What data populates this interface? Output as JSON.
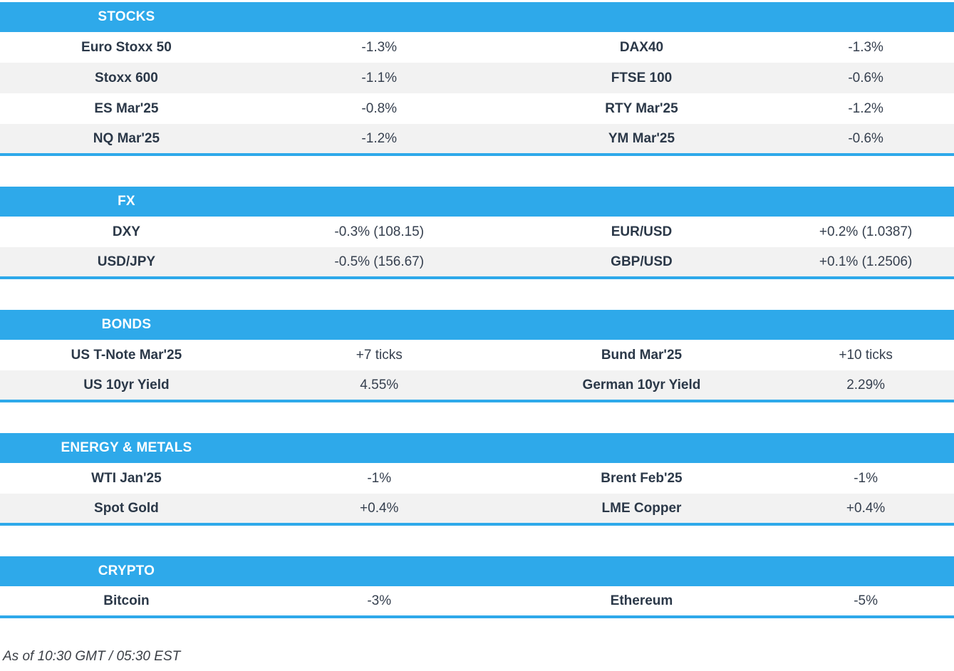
{
  "page": {
    "accent_blue": "#2ea9ea",
    "row_alt_gray": "#f2f2f2",
    "label_color": "#2b3848",
    "value_color": "#36404f",
    "footer_color": "#3b3f46"
  },
  "sections": [
    {
      "title": "STOCKS",
      "rows": [
        {
          "left_label": "Euro Stoxx 50",
          "left_value": "-1.3%",
          "right_label": "DAX40",
          "right_value": "-1.3%"
        },
        {
          "left_label": "Stoxx 600",
          "left_value": "-1.1%",
          "right_label": "FTSE 100",
          "right_value": "-0.6%"
        },
        {
          "left_label": "ES Mar'25",
          "left_value": "-0.8%",
          "right_label": "RTY Mar'25",
          "right_value": "-1.2%"
        },
        {
          "left_label": "NQ Mar'25",
          "left_value": "-1.2%",
          "right_label": "YM Mar'25",
          "right_value": "-0.6%"
        }
      ]
    },
    {
      "title": "FX",
      "rows": [
        {
          "left_label": "DXY",
          "left_value": "-0.3% (108.15)",
          "right_label": "EUR/USD",
          "right_value": "+0.2% (1.0387)"
        },
        {
          "left_label": "USD/JPY",
          "left_value": "-0.5% (156.67)",
          "right_label": "GBP/USD",
          "right_value": "+0.1% (1.2506)"
        }
      ]
    },
    {
      "title": "BONDS",
      "rows": [
        {
          "left_label": "US T-Note Mar'25",
          "left_value": "+7 ticks",
          "right_label": "Bund Mar'25",
          "right_value": "+10 ticks"
        },
        {
          "left_label": "US 10yr Yield",
          "left_value": "4.55%",
          "right_label": "German 10yr Yield",
          "right_value": "2.29%"
        }
      ]
    },
    {
      "title": "ENERGY & METALS",
      "rows": [
        {
          "left_label": "WTI Jan'25",
          "left_value": "-1%",
          "right_label": "Brent Feb'25",
          "right_value": "-1%"
        },
        {
          "left_label": "Spot Gold",
          "left_value": "+0.4%",
          "right_label": "LME Copper",
          "right_value": "+0.4%"
        }
      ]
    },
    {
      "title": "CRYPTO",
      "rows": [
        {
          "left_label": "Bitcoin",
          "left_value": "-3%",
          "right_label": "Ethereum",
          "right_value": "-5%"
        }
      ]
    }
  ],
  "footer": {
    "as_of": "As of 10:30 GMT / 05:30 EST"
  }
}
